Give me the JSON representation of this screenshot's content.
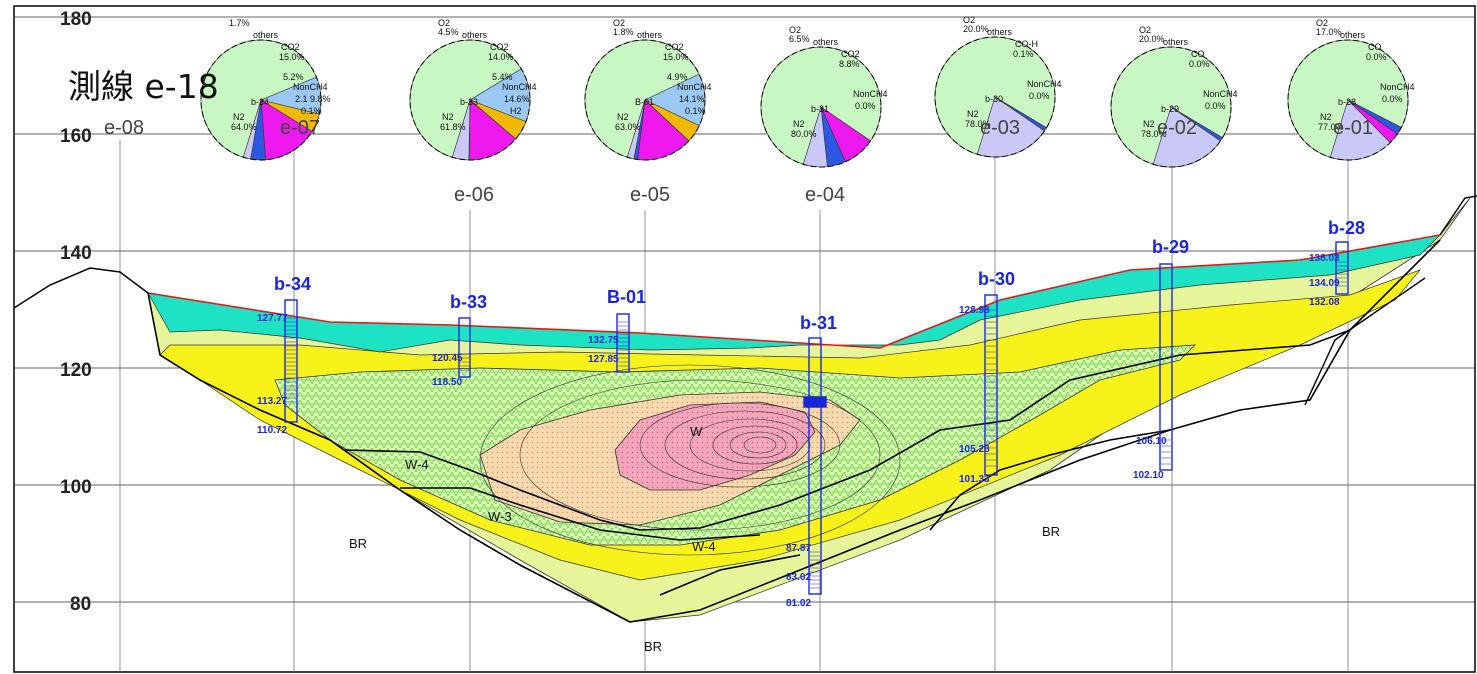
{
  "title": "測線 e-18",
  "y_axis": {
    "ticks": [
      "180",
      "160",
      "140",
      "120",
      "100",
      "80"
    ]
  },
  "survey_lines_top": [
    "e-08",
    "e-07",
    "e-03",
    "e-02",
    "e-01"
  ],
  "survey_lines_mid": [
    "e-06",
    "e-05",
    "e-04"
  ],
  "boreholes": [
    {
      "name": "b-34",
      "top": "127.77",
      "mid": "113.27",
      "bottom": "110.72"
    },
    {
      "name": "b-33",
      "top": "120.45",
      "bottom": "118.50"
    },
    {
      "name": "B-01",
      "top": "132.75",
      "bottom": "127.85"
    },
    {
      "name": "b-31",
      "top": "87.87",
      "mid": "83.02",
      "bottom": "81.02"
    },
    {
      "name": "b-30",
      "top": "128.98",
      "mid": "105.28",
      "bottom": "101.33"
    },
    {
      "name": "b-29",
      "top": "106.10",
      "bottom": "102.10"
    },
    {
      "name": "b-28",
      "top": "138.03",
      "mid": "134.09",
      "bottom": "132.08"
    }
  ],
  "layers": {
    "w3": "W-3",
    "w4_left": "W-4",
    "w4_mid": "W-4",
    "w_core": "W",
    "br_left": "BR",
    "br_bottom": "BR",
    "br_right": "BR"
  },
  "pies": [
    {
      "id": "e-07",
      "o2": "1.7%",
      "others": "others",
      "co2": "CO2",
      "co2_val": "15.0%",
      "non_ch4": "NonCH4",
      "non_val": "2.1 9.8%",
      "n2": "N2",
      "n2_val": "64.0%",
      "bore": "b-34",
      "h2": "0.1%",
      "misc": "5.2%"
    },
    {
      "id": "e-06",
      "o2": "O2",
      "o2_val": "4.5%",
      "others": "others",
      "co2": "CO2",
      "co2_val": "14.0%",
      "non_ch4": "NonCH4",
      "non_val": "14.6%",
      "n2": "N2",
      "n2_val": "61.8%",
      "bore": "b-33",
      "h2": "H2",
      "misc": "5.4%"
    },
    {
      "id": "e-05",
      "o2": "O2",
      "o2_val": "1.8%",
      "others": "others",
      "co2": "CO2",
      "co2_val": "15.0%",
      "non_ch4": "NonCH4",
      "non_val": "14.1%",
      "n2": "N2",
      "n2_val": "63.0%",
      "bore": "B-01",
      "h2": "0.1%",
      "misc": "4.9%"
    },
    {
      "id": "e-04",
      "o2": "O2",
      "o2_val": "6.5%",
      "others": "others",
      "co2": "CO2",
      "co2_val": "8.8%",
      "non_ch4": "NonCH4",
      "non_val": "0.0%",
      "n2": "N2",
      "n2_val": "80.0%",
      "bore": "b-31",
      "h2": "",
      "misc": ""
    },
    {
      "id": "e-03",
      "o2": "O2",
      "o2_val": "20.0%",
      "others": "others",
      "co2": "CO-H",
      "co2_val": "0.1%",
      "non_ch4": "NonCH4",
      "non_val": "0.0%",
      "n2": "N2",
      "n2_val": "78.0%",
      "bore": "b-30",
      "h2": "",
      "misc": ""
    },
    {
      "id": "e-02",
      "o2": "O2",
      "o2_val": "20.0%",
      "others": "others",
      "co2": "CO",
      "co2_val": "0.0%",
      "non_ch4": "NonCH4",
      "non_val": "0.0%",
      "n2": "N2",
      "n2_val": "78.0%",
      "bore": "b-29",
      "h2": "",
      "misc": ""
    },
    {
      "id": "e-01",
      "o2": "O2",
      "o2_val": "17.0%",
      "others": "others",
      "co2": "CO",
      "co2_val": "0.0%",
      "non_ch4": "NonCH4",
      "non_val": "0.0%",
      "n2": "N2",
      "n2_val": "77.0%",
      "bore": "b-28",
      "h2": "",
      "misc": ""
    }
  ],
  "colors": {
    "cyan_layer": "#1de3c4",
    "yellow_layer": "#f7f31a",
    "pale_layer": "#e6f59a",
    "green_hatch": "#9ee86a",
    "tan_core": "#f6d9ae",
    "pink_core": "#f4a6b8",
    "borehole": "#1a27d8",
    "surface": "#e41a1a",
    "pie_n2": "#c9f7c3",
    "pie_o2": "#c9c8f7",
    "pie_co2": "#ee19ee",
    "pie_ch4": "#f2b900",
    "pie_nonch4": "#9cc8f5",
    "pie_others": "#2c58e4"
  }
}
